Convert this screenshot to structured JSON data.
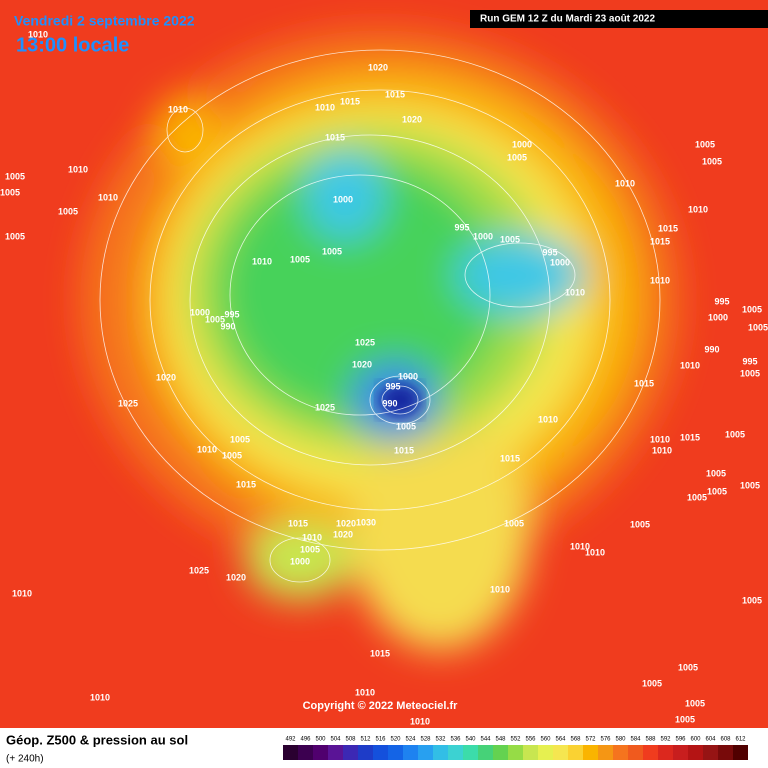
{
  "header": {
    "date": "Vendredi 2 septembre 2022",
    "time": "13:00 locale",
    "run": "Run GEM 12 Z du Mardi 23 août 2022"
  },
  "map": {
    "pressure_labels": [
      1010,
      1020,
      1010,
      1010,
      1015,
      1015,
      1020,
      1015,
      1010,
      1005,
      1005,
      1010,
      1005,
      1005,
      1000,
      1005,
      1010,
      1005,
      995,
      1000,
      1005,
      995,
      1000,
      1010,
      1000,
      1005,
      1005,
      1005,
      1010,
      1010,
      1015,
      1015,
      1010,
      995,
      1005,
      1000,
      1005,
      1010,
      990,
      995,
      1005,
      1015,
      1010,
      1010,
      1015,
      1010,
      1005,
      1005,
      1005,
      1005,
      1005,
      1005,
      1000,
      1005,
      995,
      990,
      1025,
      1020,
      1000,
      995,
      990,
      1025,
      1005,
      1015,
      1020,
      1025,
      1005,
      1010,
      1005,
      1015,
      1015,
      1005,
      1015,
      1010,
      1005,
      1000,
      1020,
      1030,
      1020,
      1025,
      1020,
      1010,
      1010,
      1010,
      1010,
      1015,
      1005,
      1005,
      1005,
      1010,
      1010,
      1010,
      1005,
      1005
    ]
  },
  "copyright": "Copyright © 2022 Meteociel.fr",
  "legend": {
    "title": "Géop. Z500 & pression au sol",
    "lead": "(+ 240h)",
    "ticks": [
      492,
      496,
      500,
      504,
      508,
      512,
      516,
      520,
      524,
      528,
      532,
      536,
      540,
      544,
      548,
      552,
      556,
      560,
      564,
      568,
      572,
      576,
      580,
      584,
      588,
      592,
      596,
      600,
      604,
      608,
      612
    ]
  }
}
